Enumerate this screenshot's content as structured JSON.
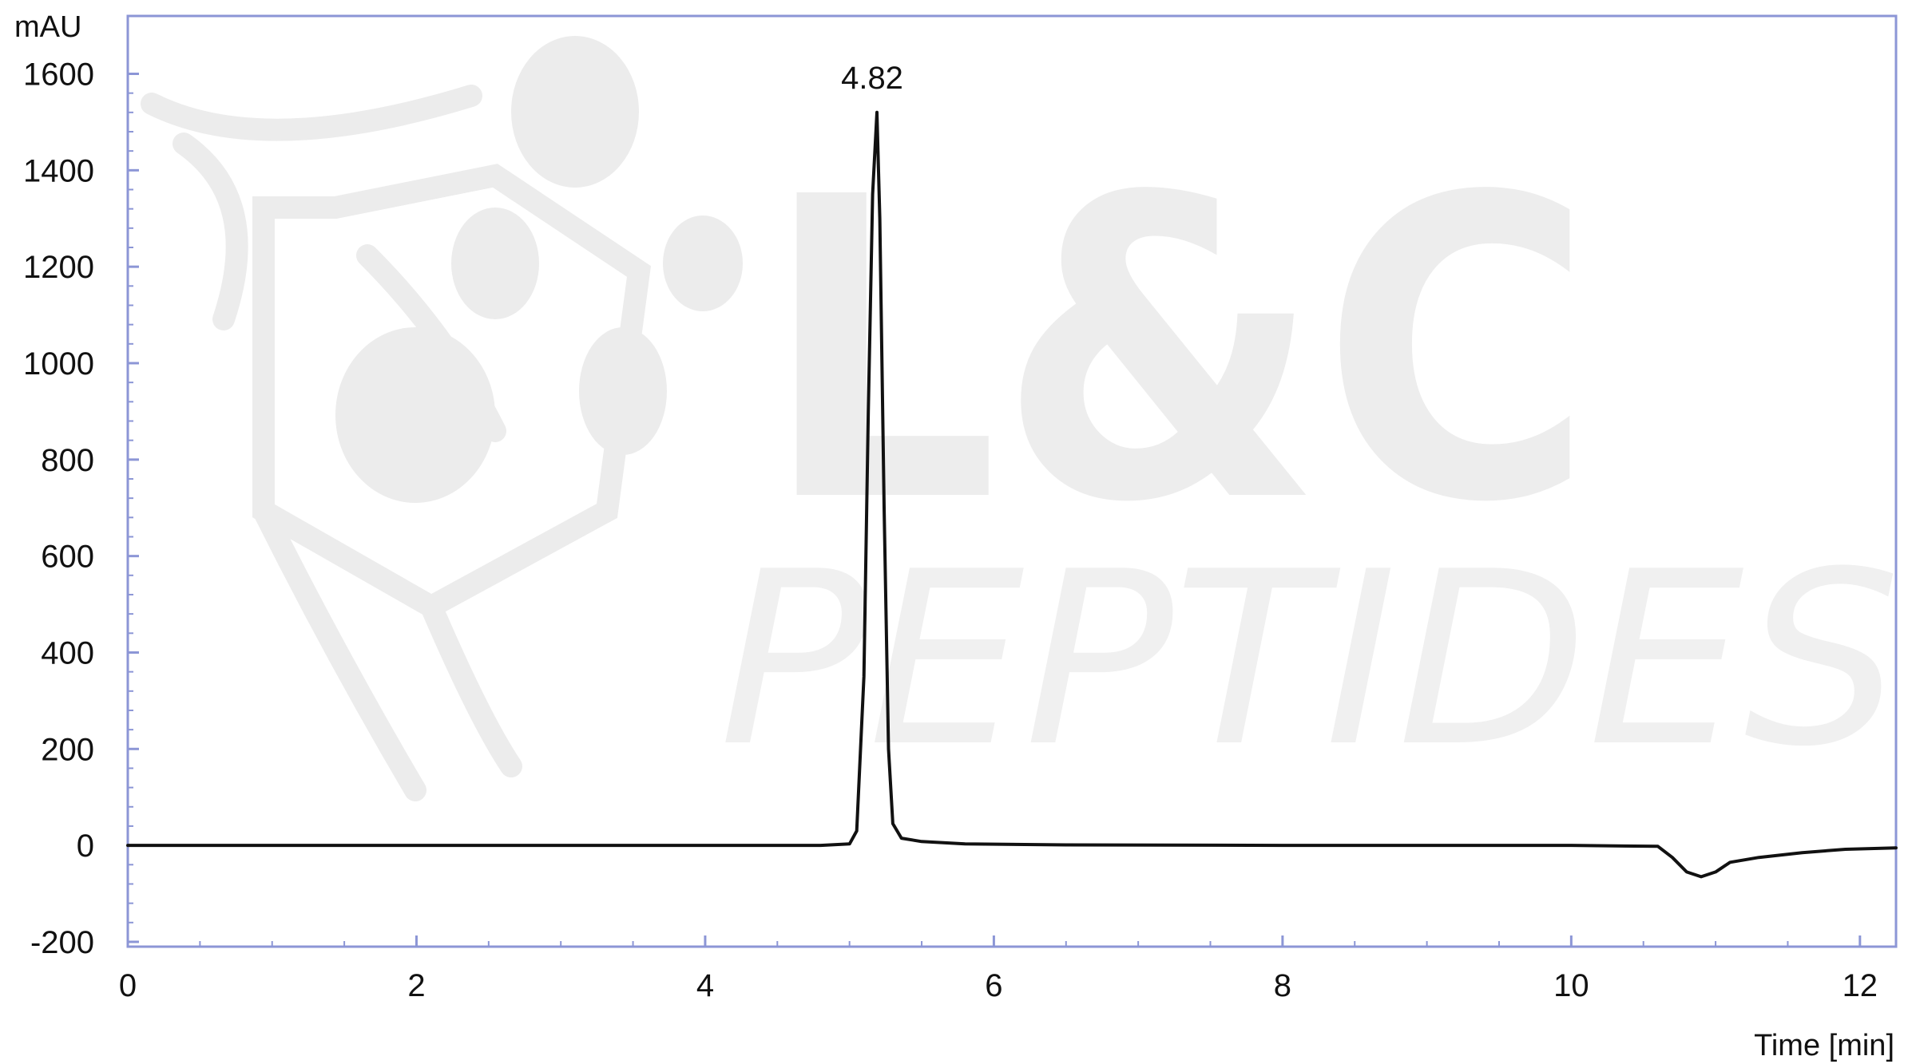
{
  "watermark": {
    "line1": "L&C",
    "line2": "PEPTIDES"
  },
  "chart_data": {
    "type": "line",
    "ylabel": "mAU",
    "xlabel": "Time  [min]",
    "xlim": [
      0,
      12.25
    ],
    "ylim": [
      -210,
      1720
    ],
    "x_ticks": [
      0,
      2,
      4,
      6,
      8,
      10,
      12
    ],
    "y_ticks": [
      -200,
      0,
      200,
      400,
      600,
      800,
      1000,
      1200,
      1400,
      1600
    ],
    "grid": false,
    "colors": {
      "line": "#111111",
      "frame": "#8c96d6",
      "watermark": "#ececec"
    },
    "series": [
      {
        "x": [
          0,
          1,
          2,
          3,
          4,
          4.8,
          5.0,
          5.05,
          5.1,
          5.13,
          5.16,
          5.19,
          5.21,
          5.24,
          5.27,
          5.3,
          5.36,
          5.5,
          5.8,
          6.5,
          8,
          10,
          10.6,
          10.7,
          10.8,
          10.9,
          11.0,
          11.1,
          11.3,
          11.6,
          11.9,
          12.25
        ],
        "y": [
          0,
          0,
          0,
          0,
          0,
          0,
          3,
          30,
          350,
          900,
          1350,
          1520,
          1300,
          700,
          200,
          45,
          15,
          8,
          3,
          1,
          0,
          0,
          -2,
          -25,
          -55,
          -65,
          -55,
          -35,
          -25,
          -15,
          -8,
          -5
        ]
      }
    ],
    "annotations": [
      {
        "x": 5.19,
        "y": 1520,
        "text": "4.82"
      }
    ]
  }
}
